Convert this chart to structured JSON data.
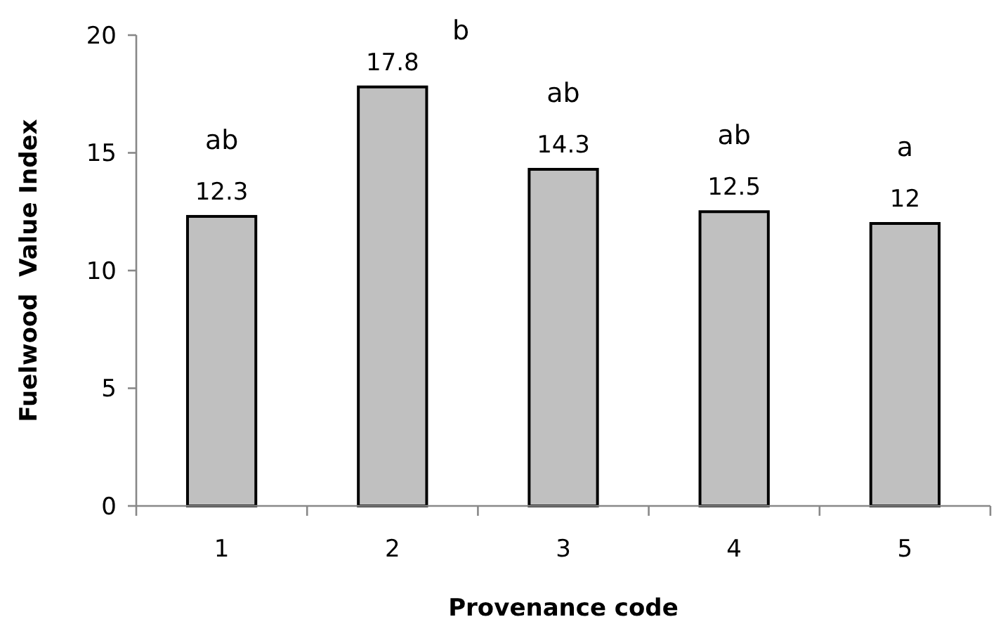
{
  "chart_data": {
    "type": "bar",
    "xlabel": "Provenance code",
    "ylabel": "Fuelwood  Value Index",
    "categories": [
      "1",
      "2",
      "3",
      "4",
      "5"
    ],
    "values": [
      12.3,
      17.8,
      14.3,
      12.5,
      12
    ],
    "color": "#c0c0c0",
    "ylim": [
      0,
      20
    ],
    "yticks": [
      0,
      5,
      10,
      15,
      20
    ],
    "grid": false,
    "data_labels": true,
    "annotations": [
      "ab",
      "b",
      "ab",
      "ab",
      "a"
    ]
  }
}
